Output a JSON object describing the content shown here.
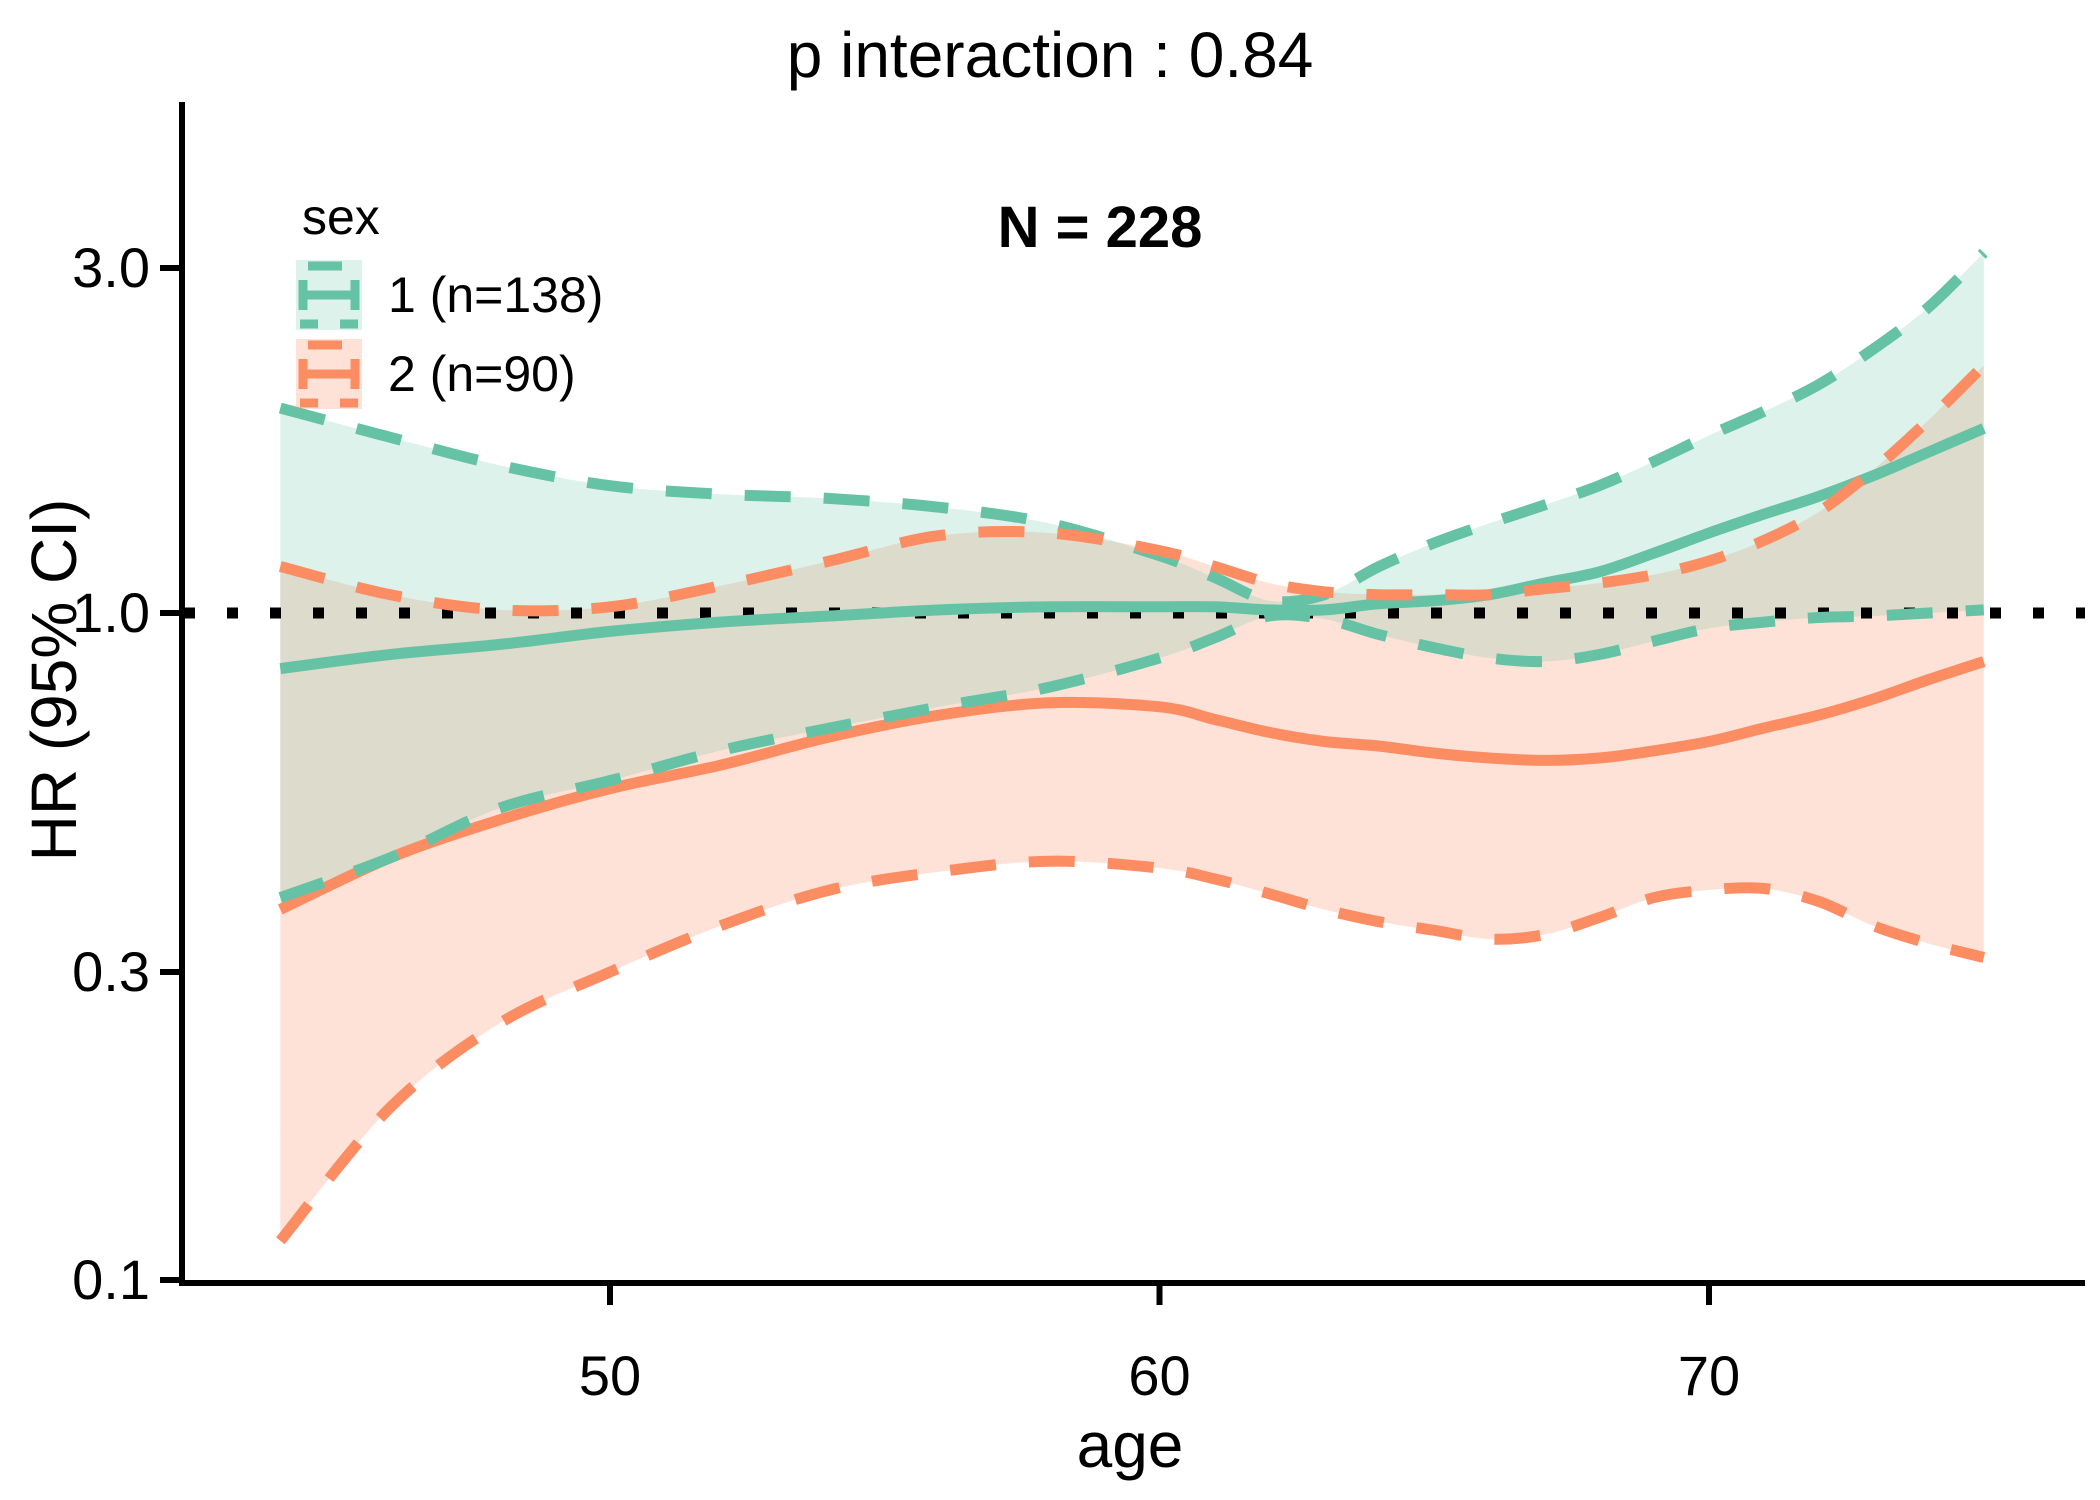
{
  "chart_data": {
    "type": "line",
    "title": "p interaction : 0.84",
    "annotation": "N = 228",
    "xlabel": "age",
    "ylabel": "HR (95% CI)",
    "y_scale": "log10",
    "x_ticks": [
      50,
      60,
      70
    ],
    "y_ticks": [
      "3.0",
      "1.0",
      "0.3",
      "0.1"
    ],
    "x_range": [
      44,
      75
    ],
    "reference_line": {
      "y": 1.0,
      "style": "dotted",
      "color": "#000000"
    },
    "grid": "off",
    "legend_position": "top-left-inside",
    "ages": [
      44,
      46,
      48,
      50,
      52,
      54,
      56,
      58,
      60,
      61,
      62,
      63,
      64,
      65,
      66,
      67,
      68,
      69,
      70,
      71,
      72,
      73,
      74,
      75
    ],
    "series": [
      {
        "name": "1 (n=138)",
        "color": "#66C2A5",
        "fill": "rgba(102,194,165,0.22)",
        "estimate": [
          0.83,
          0.87,
          0.9,
          0.94,
          0.97,
          0.99,
          1.01,
          1.02,
          1.02,
          1.02,
          1.01,
          1.01,
          1.03,
          1.04,
          1.06,
          1.1,
          1.14,
          1.21,
          1.29,
          1.37,
          1.45,
          1.55,
          1.67,
          1.8
        ],
        "upper": [
          1.92,
          1.75,
          1.6,
          1.5,
          1.46,
          1.44,
          1.4,
          1.33,
          1.2,
          1.12,
          1.04,
          1.06,
          1.16,
          1.25,
          1.33,
          1.41,
          1.5,
          1.62,
          1.76,
          1.9,
          2.07,
          2.32,
          2.65,
          3.15
        ],
        "lower": [
          0.385,
          0.44,
          0.52,
          0.57,
          0.63,
          0.68,
          0.73,
          0.78,
          0.86,
          0.92,
          0.99,
          0.98,
          0.93,
          0.89,
          0.86,
          0.85,
          0.87,
          0.91,
          0.95,
          0.97,
          0.985,
          0.99,
          1.0,
          1.01
        ]
      },
      {
        "name": "2 (n=90)",
        "color": "#FC8D62",
        "fill": "rgba(252,141,98,0.25)",
        "estimate": [
          0.37,
          0.44,
          0.5,
          0.555,
          0.6,
          0.66,
          0.71,
          0.74,
          0.73,
          0.7,
          0.67,
          0.65,
          0.64,
          0.625,
          0.615,
          0.61,
          0.615,
          0.63,
          0.65,
          0.68,
          0.71,
          0.75,
          0.8,
          0.85
        ],
        "upper": [
          1.16,
          1.06,
          1.01,
          1.02,
          1.09,
          1.18,
          1.28,
          1.29,
          1.22,
          1.16,
          1.1,
          1.07,
          1.06,
          1.06,
          1.06,
          1.08,
          1.1,
          1.13,
          1.18,
          1.26,
          1.38,
          1.58,
          1.85,
          2.2
        ],
        "lower": [
          0.115,
          0.185,
          0.25,
          0.3,
          0.35,
          0.395,
          0.42,
          0.435,
          0.425,
          0.41,
          0.39,
          0.37,
          0.355,
          0.345,
          0.335,
          0.34,
          0.36,
          0.385,
          0.395,
          0.397,
          0.38,
          0.35,
          0.33,
          0.315
        ]
      }
    ]
  },
  "legend": {
    "title": "sex",
    "items": [
      {
        "label": "1 (n=138)",
        "color": "#66C2A5",
        "fill": "rgba(102,194,165,0.22)"
      },
      {
        "label": "2 (n=90)",
        "color": "#FC8D62",
        "fill": "rgba(252,141,98,0.25)"
      }
    ]
  }
}
